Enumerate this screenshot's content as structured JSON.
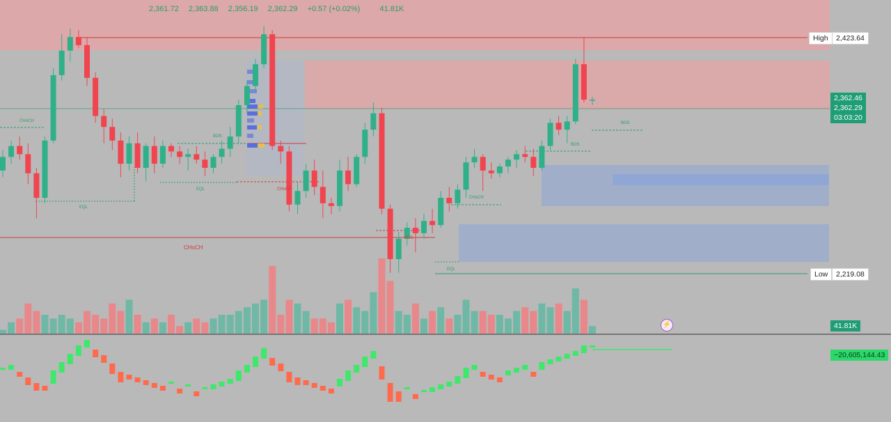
{
  "ohlc": {
    "open": "2,361.72",
    "high": "2,363.88",
    "low": "2,356.19",
    "close": "2,362.29",
    "change": "+0.57 (+0.02%)",
    "volume": "41.81K"
  },
  "price_axis": {
    "high_label": "High",
    "high_value": "2,423.64",
    "low_label": "Low",
    "low_value": "2,219.08",
    "price1": "2,362.46",
    "price2": "2,362.29",
    "countdown": "03:03:20",
    "volume_tag": "41.81K",
    "oscillator_tag": "−20,605,144.43"
  },
  "annotations": {
    "choch": "CHoCH",
    "bos": "BOS",
    "eql": "EQL"
  },
  "colors": {
    "up": "#2fb088",
    "down": "#f0444f",
    "vol_up": "#6fb8a6",
    "vol_down": "#e8888a",
    "osc_up": "#3ee86a",
    "osc_down": "#ff6a4d",
    "zone_red": "#e8a3a4",
    "zone_blue": "#8fa6d6"
  },
  "icons": {
    "bolt": "lightning-icon"
  },
  "chart_data": {
    "type": "candlestick",
    "ylim": [
      2205,
      2440
    ],
    "candles": [
      [
        2320,
        2335,
        2315,
        2330
      ],
      [
        2330,
        2342,
        2325,
        2338
      ],
      [
        2338,
        2345,
        2328,
        2332
      ],
      [
        2332,
        2340,
        2310,
        2318
      ],
      [
        2318,
        2322,
        2285,
        2300
      ],
      [
        2300,
        2345,
        2296,
        2342
      ],
      [
        2342,
        2395,
        2340,
        2390
      ],
      [
        2390,
        2420,
        2386,
        2408
      ],
      [
        2408,
        2424,
        2400,
        2418
      ],
      [
        2418,
        2423,
        2410,
        2412
      ],
      [
        2412,
        2418,
        2382,
        2388
      ],
      [
        2388,
        2392,
        2355,
        2360
      ],
      [
        2360,
        2365,
        2340,
        2352
      ],
      [
        2352,
        2358,
        2335,
        2342
      ],
      [
        2342,
        2348,
        2315,
        2325
      ],
      [
        2325,
        2345,
        2320,
        2340
      ],
      [
        2340,
        2348,
        2318,
        2322
      ],
      [
        2322,
        2340,
        2312,
        2338
      ],
      [
        2338,
        2345,
        2318,
        2325
      ],
      [
        2325,
        2342,
        2322,
        2338
      ],
      [
        2338,
        2340,
        2330,
        2334
      ],
      [
        2334,
        2338,
        2325,
        2330
      ],
      [
        2330,
        2336,
        2320,
        2332
      ],
      [
        2332,
        2338,
        2325,
        2328
      ],
      [
        2328,
        2334,
        2316,
        2322
      ],
      [
        2322,
        2332,
        2318,
        2330
      ],
      [
        2330,
        2342,
        2325,
        2336
      ],
      [
        2336,
        2352,
        2330,
        2345
      ],
      [
        2345,
        2372,
        2340,
        2368
      ],
      [
        2368,
        2386,
        2362,
        2382
      ],
      [
        2382,
        2402,
        2378,
        2398
      ],
      [
        2398,
        2426,
        2395,
        2420
      ],
      [
        2420,
        2423,
        2335,
        2338
      ],
      [
        2338,
        2342,
        2325,
        2334
      ],
      [
        2334,
        2338,
        2290,
        2295
      ],
      [
        2295,
        2312,
        2288,
        2305
      ],
      [
        2305,
        2325,
        2300,
        2320
      ],
      [
        2320,
        2328,
        2302,
        2308
      ],
      [
        2308,
        2320,
        2285,
        2296
      ],
      [
        2296,
        2300,
        2288,
        2294
      ],
      [
        2294,
        2328,
        2290,
        2320
      ],
      [
        2320,
        2330,
        2305,
        2310
      ],
      [
        2310,
        2332,
        2308,
        2330
      ],
      [
        2330,
        2355,
        2325,
        2350
      ],
      [
        2350,
        2370,
        2345,
        2362
      ],
      [
        2362,
        2366,
        2288,
        2292
      ],
      [
        2292,
        2295,
        2245,
        2255
      ],
      [
        2255,
        2275,
        2245,
        2270
      ],
      [
        2270,
        2282,
        2265,
        2278
      ],
      [
        2278,
        2285,
        2260,
        2274
      ],
      [
        2274,
        2288,
        2270,
        2283
      ],
      [
        2283,
        2292,
        2274,
        2280
      ],
      [
        2280,
        2305,
        2278,
        2300
      ],
      [
        2300,
        2308,
        2290,
        2296
      ],
      [
        2296,
        2310,
        2292,
        2306
      ],
      [
        2306,
        2330,
        2300,
        2326
      ],
      [
        2326,
        2336,
        2322,
        2330
      ],
      [
        2330,
        2332,
        2305,
        2320
      ],
      [
        2320,
        2326,
        2314,
        2318
      ],
      [
        2318,
        2325,
        2315,
        2323
      ],
      [
        2323,
        2330,
        2318,
        2328
      ],
      [
        2328,
        2335,
        2322,
        2332
      ],
      [
        2332,
        2338,
        2326,
        2330
      ],
      [
        2330,
        2336,
        2316,
        2322
      ],
      [
        2322,
        2342,
        2320,
        2338
      ],
      [
        2338,
        2358,
        2335,
        2355
      ],
      [
        2355,
        2360,
        2346,
        2350
      ],
      [
        2350,
        2360,
        2340,
        2356
      ],
      [
        2356,
        2402,
        2354,
        2398
      ],
      [
        2398,
        2418,
        2370,
        2372
      ],
      [
        2372,
        2374,
        2368,
        2372
      ]
    ],
    "volumes": [
      1,
      3,
      4,
      8,
      6,
      5,
      4,
      5,
      4,
      3,
      6,
      5,
      4,
      8,
      6,
      9,
      5,
      3,
      4,
      3,
      5,
      2,
      3,
      4,
      3,
      4,
      5,
      5,
      6,
      7,
      8,
      9,
      18,
      5,
      9,
      8,
      6,
      4,
      4,
      3,
      8,
      9,
      7,
      6,
      11,
      20,
      14,
      6,
      5,
      8,
      4,
      6,
      7,
      4,
      5,
      9,
      6,
      6,
      5,
      5,
      4,
      6,
      7,
      6,
      8,
      7,
      8,
      6,
      12,
      9,
      2
    ],
    "oscillator": [
      2,
      3,
      2,
      0,
      -2,
      -3,
      1,
      4,
      7,
      10,
      12,
      10,
      8,
      5,
      2,
      1,
      0,
      -1,
      -2,
      -3,
      -3,
      -4,
      -4,
      -5,
      -5,
      -4,
      -3,
      -2,
      1,
      3,
      6,
      9,
      7,
      5,
      2,
      0,
      -1,
      -2,
      -3,
      -4,
      -2,
      1,
      3,
      6,
      8,
      4,
      -2,
      -5,
      -5,
      -6,
      -6,
      -5,
      -4,
      -3,
      -1,
      2,
      3,
      2,
      1,
      0,
      1,
      2,
      3,
      2,
      4,
      5,
      6,
      7,
      8,
      10,
      10
    ]
  }
}
